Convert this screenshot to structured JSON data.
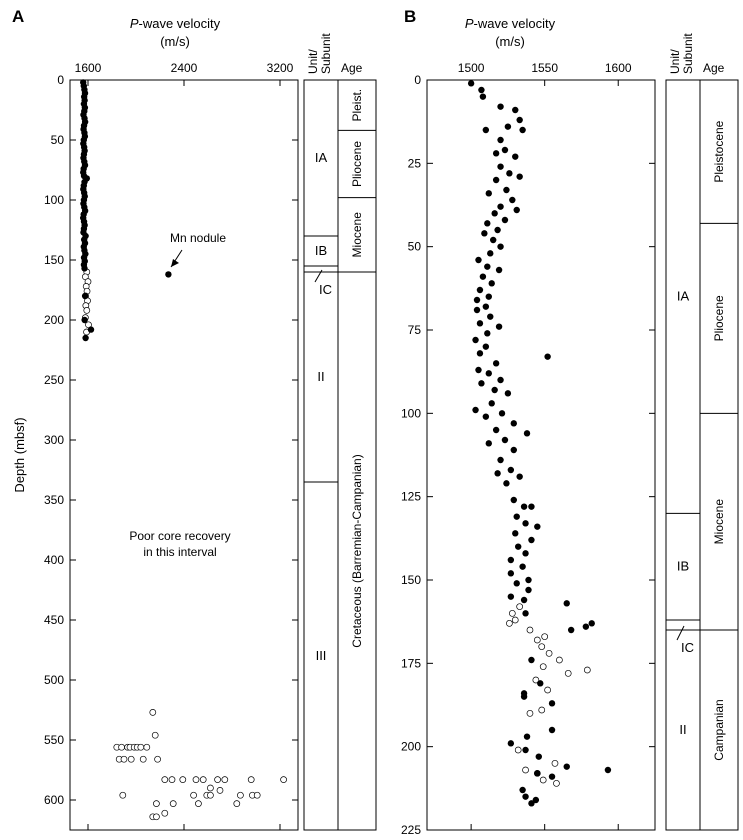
{
  "chart_data": [
    {
      "panel": "A",
      "type": "scatter",
      "title": "P-wave velocity",
      "title_italic_part": "P",
      "title_rest": "-wave velocity",
      "units": "(m/s)",
      "xlim": [
        1450,
        3350
      ],
      "xticks": [
        1600,
        2400,
        3200
      ],
      "ylabel": "Depth (mbsf)",
      "ylim": [
        0,
        625
      ],
      "yticks": [
        0,
        50,
        100,
        150,
        200,
        250,
        300,
        350,
        400,
        450,
        500,
        550,
        600
      ],
      "filled_points": [
        [
          1560,
          2
        ],
        [
          1565,
          5
        ],
        [
          1570,
          8
        ],
        [
          1575,
          11
        ],
        [
          1568,
          14
        ],
        [
          1572,
          17
        ],
        [
          1566,
          20
        ],
        [
          1574,
          23
        ],
        [
          1569,
          26
        ],
        [
          1562,
          29
        ],
        [
          1571,
          32
        ],
        [
          1576,
          35
        ],
        [
          1567,
          38
        ],
        [
          1563,
          41
        ],
        [
          1570,
          44
        ],
        [
          1574,
          47
        ],
        [
          1565,
          50
        ],
        [
          1561,
          53
        ],
        [
          1568,
          56
        ],
        [
          1572,
          59
        ],
        [
          1566,
          62
        ],
        [
          1562,
          65
        ],
        [
          1569,
          68
        ],
        [
          1575,
          71
        ],
        [
          1564,
          74
        ],
        [
          1560,
          77
        ],
        [
          1567,
          80
        ],
        [
          1590,
          82
        ],
        [
          1571,
          85
        ],
        [
          1565,
          88
        ],
        [
          1561,
          91
        ],
        [
          1568,
          94
        ],
        [
          1573,
          97
        ],
        [
          1566,
          100
        ],
        [
          1562,
          103
        ],
        [
          1569,
          106
        ],
        [
          1576,
          109
        ],
        [
          1564,
          112
        ],
        [
          1560,
          115
        ],
        [
          1567,
          118
        ],
        [
          1572,
          121
        ],
        [
          1566,
          124
        ],
        [
          1562,
          127
        ],
        [
          1580,
          130
        ],
        [
          1568,
          133
        ],
        [
          1575,
          136
        ],
        [
          1565,
          139
        ],
        [
          1570,
          142
        ],
        [
          1578,
          145
        ],
        [
          1567,
          148
        ],
        [
          1573,
          151
        ],
        [
          1566,
          154
        ],
        [
          1571,
          157
        ],
        [
          2270,
          162
        ],
        [
          1576,
          180
        ],
        [
          1572,
          200
        ],
        [
          1625,
          208
        ],
        [
          1580,
          215
        ]
      ],
      "open_points": [
        [
          1590,
          160
        ],
        [
          1578,
          164
        ],
        [
          1600,
          168
        ],
        [
          1585,
          172
        ],
        [
          1592,
          176
        ],
        [
          1580,
          180
        ],
        [
          1596,
          184
        ],
        [
          1582,
          188
        ],
        [
          1590,
          192
        ],
        [
          1578,
          198
        ],
        [
          1604,
          204
        ],
        [
          1588,
          210
        ],
        [
          2140,
          527
        ],
        [
          2160,
          546
        ],
        [
          1840,
          556
        ],
        [
          1880,
          556
        ],
        [
          1930,
          556
        ],
        [
          1950,
          556
        ],
        [
          1985,
          556
        ],
        [
          2010,
          556
        ],
        [
          2040,
          556
        ],
        [
          2090,
          556
        ],
        [
          1860,
          566
        ],
        [
          1900,
          566
        ],
        [
          1960,
          566
        ],
        [
          2060,
          566
        ],
        [
          2180,
          566
        ],
        [
          2240,
          583
        ],
        [
          2300,
          583
        ],
        [
          2390,
          583
        ],
        [
          2500,
          583
        ],
        [
          2560,
          583
        ],
        [
          2680,
          583
        ],
        [
          2740,
          583
        ],
        [
          2960,
          583
        ],
        [
          3230,
          583
        ],
        [
          2620,
          590
        ],
        [
          2700,
          592
        ],
        [
          1890,
          596
        ],
        [
          2480,
          596
        ],
        [
          2590,
          596
        ],
        [
          2620,
          596
        ],
        [
          2870,
          596
        ],
        [
          2970,
          596
        ],
        [
          3010,
          596
        ],
        [
          2170,
          603
        ],
        [
          2520,
          603
        ],
        [
          2840,
          603
        ],
        [
          2310,
          603
        ],
        [
          2140,
          614
        ],
        [
          2170,
          614
        ],
        [
          2240,
          611
        ]
      ],
      "annotation": "Mn nodule",
      "note": [
        "Poor core recovery",
        "in this interval"
      ],
      "unit_header": [
        "Unit/",
        "Subunit"
      ],
      "age_header": "Age",
      "units_col": [
        {
          "label": "IA",
          "top": 0,
          "bottom": 130
        },
        {
          "label": "IB",
          "top": 130,
          "bottom": 155
        },
        {
          "label": "IC",
          "top": 155,
          "bottom": 160
        },
        {
          "label": "II",
          "top": 160,
          "bottom": 335
        },
        {
          "label": "III",
          "top": 335,
          "bottom": 625
        }
      ],
      "ages_col": [
        {
          "label": "Pleist.",
          "top": 0,
          "bottom": 42
        },
        {
          "label": "Pliocene",
          "top": 42,
          "bottom": 98
        },
        {
          "label": "Miocene",
          "top": 98,
          "bottom": 160
        },
        {
          "label": "Cretaceous (Barremian-Campanian)",
          "top": 160,
          "bottom": 625
        }
      ]
    },
    {
      "panel": "B",
      "type": "scatter",
      "title": "P-wave velocity",
      "title_italic_part": "P",
      "title_rest": "-wave velocity",
      "units": "(m/s)",
      "xlim": [
        1470,
        1625
      ],
      "xticks": [
        1500,
        1550,
        1600
      ],
      "ylim": [
        0,
        225
      ],
      "yticks": [
        0,
        25,
        50,
        75,
        100,
        125,
        150,
        175,
        200,
        225
      ],
      "filled_points": [
        [
          1500,
          1
        ],
        [
          1507,
          3
        ],
        [
          1508,
          5
        ],
        [
          1520,
          8
        ],
        [
          1530,
          9
        ],
        [
          1533,
          12
        ],
        [
          1525,
          14
        ],
        [
          1535,
          15
        ],
        [
          1510,
          15
        ],
        [
          1520,
          18
        ],
        [
          1523,
          21
        ],
        [
          1517,
          22
        ],
        [
          1530,
          23
        ],
        [
          1520,
          26
        ],
        [
          1526,
          28
        ],
        [
          1533,
          29
        ],
        [
          1517,
          30
        ],
        [
          1524,
          33
        ],
        [
          1512,
          34
        ],
        [
          1528,
          36
        ],
        [
          1520,
          38
        ],
        [
          1531,
          39
        ],
        [
          1516,
          40
        ],
        [
          1523,
          42
        ],
        [
          1511,
          43
        ],
        [
          1518,
          45
        ],
        [
          1509,
          46
        ],
        [
          1515,
          48
        ],
        [
          1520,
          50
        ],
        [
          1513,
          52
        ],
        [
          1505,
          54
        ],
        [
          1511,
          56
        ],
        [
          1519,
          57
        ],
        [
          1508,
          59
        ],
        [
          1514,
          61
        ],
        [
          1506,
          63
        ],
        [
          1512,
          65
        ],
        [
          1504,
          66
        ],
        [
          1510,
          68
        ],
        [
          1504,
          69
        ],
        [
          1513,
          71
        ],
        [
          1506,
          73
        ],
        [
          1519,
          74
        ],
        [
          1511,
          76
        ],
        [
          1503,
          78
        ],
        [
          1510,
          80
        ],
        [
          1506,
          82
        ],
        [
          1552,
          83
        ],
        [
          1517,
          85
        ],
        [
          1505,
          87
        ],
        [
          1512,
          88
        ],
        [
          1520,
          90
        ],
        [
          1507,
          91
        ],
        [
          1516,
          93
        ],
        [
          1525,
          94
        ],
        [
          1514,
          97
        ],
        [
          1503,
          99
        ],
        [
          1521,
          100
        ],
        [
          1510,
          101
        ],
        [
          1529,
          103
        ],
        [
          1517,
          105
        ],
        [
          1538,
          106
        ],
        [
          1523,
          108
        ],
        [
          1512,
          109
        ],
        [
          1529,
          111
        ],
        [
          1520,
          114
        ],
        [
          1527,
          117
        ],
        [
          1518,
          118
        ],
        [
          1533,
          119
        ],
        [
          1524,
          121
        ],
        [
          1529,
          126
        ],
        [
          1536,
          128
        ],
        [
          1541,
          128
        ],
        [
          1531,
          131
        ],
        [
          1537,
          133
        ],
        [
          1545,
          134
        ],
        [
          1530,
          136
        ],
        [
          1541,
          138
        ],
        [
          1532,
          140
        ],
        [
          1537,
          142
        ],
        [
          1527,
          144
        ],
        [
          1535,
          146
        ],
        [
          1527,
          148
        ],
        [
          1539,
          150
        ],
        [
          1531,
          151
        ],
        [
          1539,
          153
        ],
        [
          1527,
          155
        ],
        [
          1536,
          156
        ],
        [
          1565,
          157
        ],
        [
          1537,
          160
        ],
        [
          1582,
          163
        ],
        [
          1578,
          164
        ],
        [
          1568,
          165
        ],
        [
          1536,
          184
        ],
        [
          1541,
          174
        ],
        [
          1536,
          185
        ],
        [
          1547,
          181
        ],
        [
          1555,
          187
        ],
        [
          1527,
          199
        ],
        [
          1538,
          197
        ],
        [
          1546,
          203
        ],
        [
          1537,
          201
        ],
        [
          1555,
          195
        ],
        [
          1545,
          208
        ],
        [
          1565,
          206
        ],
        [
          1555,
          209
        ],
        [
          1593,
          207
        ],
        [
          1535,
          213
        ],
        [
          1537,
          215
        ],
        [
          1544,
          216
        ],
        [
          1541,
          217
        ]
      ],
      "open_points": [
        [
          1528,
          160
        ],
        [
          1530,
          162
        ],
        [
          1526,
          163
        ],
        [
          1533,
          158
        ],
        [
          1540,
          165
        ],
        [
          1545,
          168
        ],
        [
          1550,
          167
        ],
        [
          1548,
          170
        ],
        [
          1553,
          172
        ],
        [
          1560,
          174
        ],
        [
          1549,
          176
        ],
        [
          1566,
          178
        ],
        [
          1579,
          177
        ],
        [
          1544,
          180
        ],
        [
          1552,
          183
        ],
        [
          1540,
          190
        ],
        [
          1548,
          189
        ],
        [
          1532,
          201
        ],
        [
          1557,
          205
        ],
        [
          1545,
          208
        ],
        [
          1537,
          207
        ],
        [
          1549,
          210
        ],
        [
          1558,
          211
        ]
      ],
      "unit_header": [
        "Unit/",
        "Subunit"
      ],
      "age_header": "Age",
      "units_col": [
        {
          "label": "IA",
          "top": 0,
          "bottom": 130
        },
        {
          "label": "IB",
          "top": 130,
          "bottom": 162
        },
        {
          "label": "IC",
          "top": 162,
          "bottom": 165
        },
        {
          "label": "II",
          "top": 165,
          "bottom": 225
        }
      ],
      "ages_col": [
        {
          "label": "Pleistocene",
          "top": 0,
          "bottom": 43
        },
        {
          "label": "Pliocene",
          "top": 43,
          "bottom": 100
        },
        {
          "label": "Miocene",
          "top": 100,
          "bottom": 165
        },
        {
          "label": "Campanian",
          "top": 165,
          "bottom": 225
        }
      ]
    }
  ]
}
